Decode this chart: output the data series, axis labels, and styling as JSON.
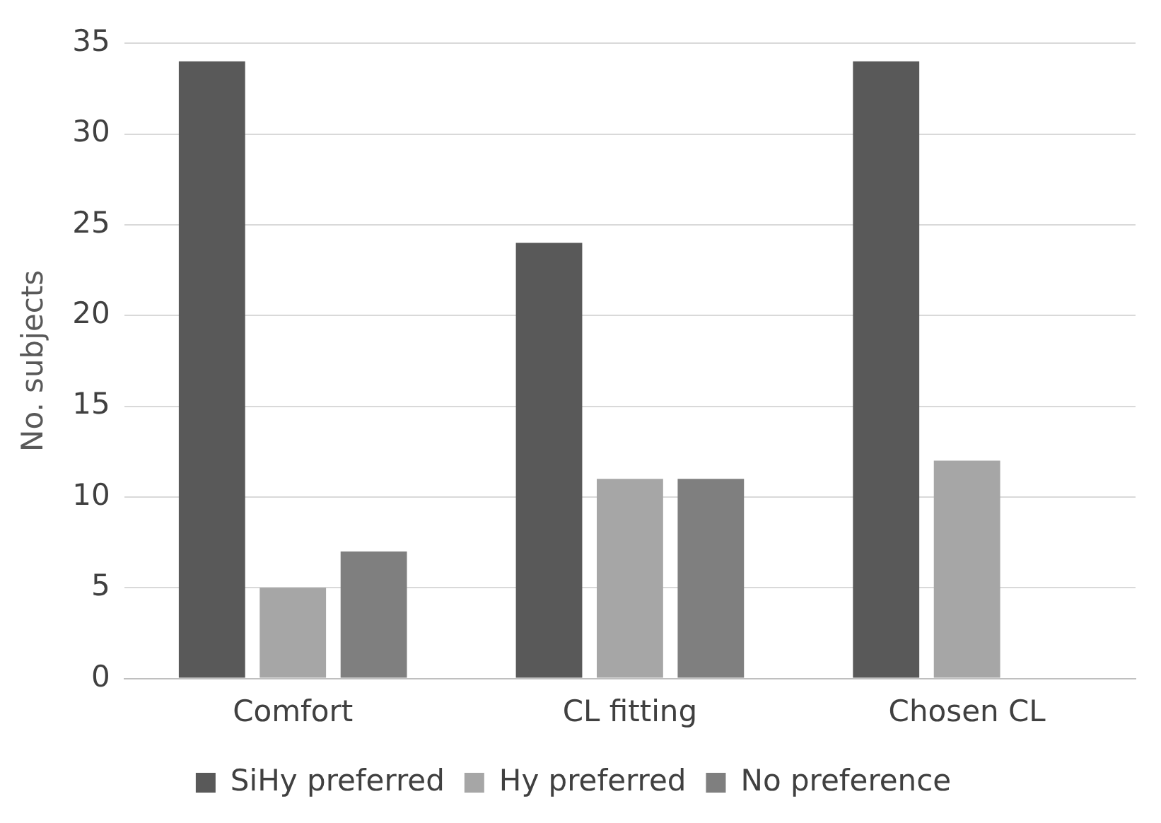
{
  "chart_data": {
    "type": "bar",
    "ylabel": "No. subjects",
    "categories": [
      "Comfort",
      "CL fitting",
      "Chosen CL"
    ],
    "series": [
      {
        "name": "SiHy preferred",
        "color": "#595959",
        "values": [
          34,
          24,
          34
        ]
      },
      {
        "name": "Hy preferred",
        "color": "#a6a6a6",
        "values": [
          5,
          11,
          12
        ]
      },
      {
        "name": "No preference",
        "color": "#7f7f7f",
        "values": [
          7,
          11,
          0
        ]
      }
    ],
    "ylim": [
      0,
      35
    ],
    "yticks": [
      0,
      5,
      10,
      15,
      20,
      25,
      30,
      35
    ],
    "grid": "y",
    "legend": "bottom"
  }
}
